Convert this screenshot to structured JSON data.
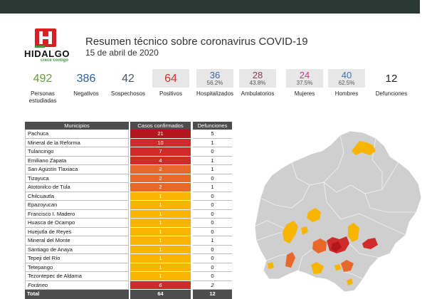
{
  "logo": {
    "icon": "hidalgo-h-logo",
    "name": "HIDALGO",
    "tagline": "crece contigo"
  },
  "header": {
    "title": "Resumen técnico sobre coronavirus COVID-19",
    "date": "15 de abril de 2020"
  },
  "stats": [
    {
      "value": "492",
      "label": "Personas estudiadas",
      "color": "#6a9b3b"
    },
    {
      "value": "386",
      "label": "Negativos",
      "color": "#2e5e9e"
    },
    {
      "value": "42",
      "label": "Sospechosos",
      "color": "#4b5868"
    },
    {
      "value": "64",
      "label": "Positivos",
      "color": "#d2302f"
    },
    {
      "value": "36",
      "percent": "56.2%",
      "label": "Hospitalizados",
      "color": "#3d64a6"
    },
    {
      "value": "28",
      "percent": "43.8%",
      "label": "Ambulatorios",
      "color": "#8c3b5c"
    },
    {
      "value": "24",
      "percent": "37.5%",
      "label": "Mujeres",
      "color": "#cc3a7e"
    },
    {
      "value": "40",
      "percent": "62.5%",
      "label": "Hombres",
      "color": "#3b72b3"
    },
    {
      "value": "12",
      "label": "Defunciones",
      "color": "#222222"
    }
  ],
  "table": {
    "headers": [
      "Municipios",
      "Casos confirmados",
      "Defunciones"
    ],
    "rows": [
      {
        "municipio": "Pachuca",
        "casos": "21",
        "defunciones": "5",
        "color": "dark_red"
      },
      {
        "municipio": "Mineral de la Reforma",
        "casos": "10",
        "defunciones": "1",
        "color": "red"
      },
      {
        "municipio": "Tulancingo",
        "casos": "7",
        "defunciones": "0",
        "color": "red"
      },
      {
        "municipio": "Emiliano Zapata",
        "casos": "4",
        "defunciones": "1",
        "color": "red"
      },
      {
        "municipio": "San Agustín Tlaxiaca",
        "casos": "2",
        "defunciones": "1",
        "color": "orange"
      },
      {
        "municipio": "Tizayuca",
        "casos": "2",
        "defunciones": "0",
        "color": "orange"
      },
      {
        "municipio": "Atotonilco de Tula",
        "casos": "2",
        "defunciones": "1",
        "color": "orange"
      },
      {
        "municipio": "Chilcuautla",
        "casos": "1",
        "defunciones": "0",
        "color": "yellow"
      },
      {
        "municipio": "Epazoyucan",
        "casos": "1",
        "defunciones": "0",
        "color": "yellow"
      },
      {
        "municipio": "Francisco I. Madero",
        "casos": "1",
        "defunciones": "0",
        "color": "yellow"
      },
      {
        "municipio": "Huasca de Ocampo",
        "casos": "1",
        "defunciones": "0",
        "color": "yellow"
      },
      {
        "municipio": "Huejutla de Reyes",
        "casos": "1",
        "defunciones": "0",
        "color": "yellow"
      },
      {
        "municipio": "Mineral del Monte",
        "casos": "1",
        "defunciones": "1",
        "color": "yellow"
      },
      {
        "municipio": "Santiago de Anaya",
        "casos": "1",
        "defunciones": "0",
        "color": "yellow"
      },
      {
        "municipio": "Tepeji del Río",
        "casos": "1",
        "defunciones": "0",
        "color": "yellow"
      },
      {
        "municipio": "Tetepango",
        "casos": "1",
        "defunciones": "0",
        "color": "yellow"
      },
      {
        "municipio": "Tezontepec de Aldama",
        "casos": "1",
        "defunciones": "0",
        "color": "yellow"
      }
    ],
    "foreign": {
      "municipio": "Foráneo",
      "casos": "6",
      "defunciones": "2",
      "color": "red"
    },
    "total": {
      "label": "Total",
      "casos": "64",
      "defunciones": "12"
    }
  },
  "colors": {
    "dark_red": "#b3171d",
    "red": "#d02a2a",
    "orange": "#e8672b",
    "yellow": "#f7b500",
    "map_base": "#cfcfcf",
    "topbar": "#2a3833"
  }
}
